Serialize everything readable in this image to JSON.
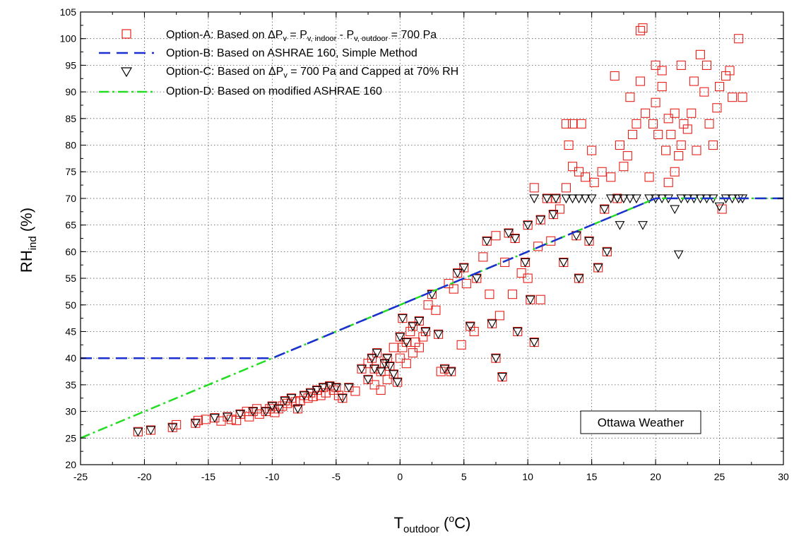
{
  "chart_data": {
    "type": "scatter",
    "title": "",
    "xlim": [
      -25,
      30
    ],
    "ylim": [
      20,
      105
    ],
    "x_ticks": [
      -25,
      -20,
      -15,
      -10,
      -5,
      0,
      5,
      10,
      15,
      20,
      25,
      30
    ],
    "y_ticks": [
      20,
      25,
      30,
      35,
      40,
      45,
      50,
      55,
      60,
      65,
      70,
      75,
      80,
      85,
      90,
      95,
      100,
      105
    ],
    "grid": true,
    "legend_position": "top-left",
    "annotation": "Ottawa Weather",
    "xlabel": {
      "main": "T",
      "sub": "outdoor",
      "paren_open": " (",
      "sup": "o",
      "unit": "C)"
    },
    "ylabel": {
      "main": "RH",
      "sub": "ind",
      "unit": " (%)"
    },
    "legend": [
      {
        "key": "A",
        "text_parts": {
          "t1": "Option-A: Based on ",
          "t2": "ΔP",
          "t3": "v",
          "t4": " = P",
          "t5": "v, indoor",
          "t6": " - P",
          "t7": "v, outdoor",
          "t8": " = 700 Pa"
        }
      },
      {
        "key": "B",
        "text_parts": {
          "t1": "Option-B: Based on ASHRAE 160, Simple Method"
        }
      },
      {
        "key": "C",
        "text_parts": {
          "t1": "Option-C: Based on ",
          "t2": "ΔP",
          "t3": "v",
          "t4": " = 700 Pa and Capped at 70% RH"
        }
      },
      {
        "key": "D",
        "text_parts": {
          "t1": "Option-D: Based on modified ASHRAE 160"
        }
      }
    ],
    "series": [
      {
        "name": "Option-A: Based on ΔPv = Pv, indoor - Pv, outdoor = 700 Pa",
        "marker": "square",
        "color": "#e8201a",
        "points": [
          [
            -20.5,
            26.2
          ],
          [
            -19.5,
            26.5
          ],
          [
            -17.8,
            27
          ],
          [
            -17.5,
            27.5
          ],
          [
            -16,
            27.8
          ],
          [
            -15.8,
            28.3
          ],
          [
            -15.2,
            28.5
          ],
          [
            -14.5,
            28.8
          ],
          [
            -14,
            28.2
          ],
          [
            -13.5,
            29
          ],
          [
            -13.2,
            28.5
          ],
          [
            -12.8,
            28.3
          ],
          [
            -12.5,
            29.5
          ],
          [
            -12,
            30
          ],
          [
            -11.8,
            29
          ],
          [
            -11.5,
            30
          ],
          [
            -11.2,
            30.5
          ],
          [
            -11,
            29.5
          ],
          [
            -10.5,
            30
          ],
          [
            -10.2,
            30.5
          ],
          [
            -10,
            31
          ],
          [
            -9.8,
            29.8
          ],
          [
            -9.5,
            30.5
          ],
          [
            -9.2,
            31
          ],
          [
            -9,
            32
          ],
          [
            -8.8,
            31.5
          ],
          [
            -8.5,
            32.5
          ],
          [
            -8.2,
            31.8
          ],
          [
            -8,
            30.5
          ],
          [
            -7.8,
            32
          ],
          [
            -7.5,
            33
          ],
          [
            -7.2,
            32.5
          ],
          [
            -7,
            33.5
          ],
          [
            -6.8,
            32.8
          ],
          [
            -6.5,
            34
          ],
          [
            -6.2,
            33
          ],
          [
            -6,
            34.5
          ],
          [
            -5.8,
            33.5
          ],
          [
            -5.5,
            34.8
          ],
          [
            -5.2,
            34
          ],
          [
            -5,
            34.5
          ],
          [
            -4.8,
            33
          ],
          [
            -4.5,
            32.5
          ],
          [
            -4,
            34.5
          ],
          [
            -3.5,
            33.8
          ],
          [
            -3,
            38
          ],
          [
            -2.5,
            36
          ],
          [
            -2.5,
            39
          ],
          [
            -2.2,
            40
          ],
          [
            -2,
            38
          ],
          [
            -2,
            35
          ],
          [
            -1.8,
            41
          ],
          [
            -1.5,
            37.5
          ],
          [
            -1.5,
            34
          ],
          [
            -1.2,
            39
          ],
          [
            -1,
            40
          ],
          [
            -1,
            36
          ],
          [
            -0.8,
            38.5
          ],
          [
            -0.5,
            37
          ],
          [
            -0.5,
            42
          ],
          [
            -0.2,
            35.5
          ],
          [
            0,
            44
          ],
          [
            0,
            40
          ],
          [
            0.2,
            42
          ],
          [
            0.2,
            47.5
          ],
          [
            0.5,
            43
          ],
          [
            0.5,
            39
          ],
          [
            0.8,
            45
          ],
          [
            1,
            46
          ],
          [
            1,
            41
          ],
          [
            1.2,
            43
          ],
          [
            1.5,
            47
          ],
          [
            1.5,
            42
          ],
          [
            1.8,
            44
          ],
          [
            2,
            45
          ],
          [
            2.2,
            50
          ],
          [
            2.5,
            52
          ],
          [
            2.8,
            49
          ],
          [
            3,
            44.5
          ],
          [
            3.2,
            37.5
          ],
          [
            3.5,
            38
          ],
          [
            3.8,
            54
          ],
          [
            4,
            37.5
          ],
          [
            4.2,
            53
          ],
          [
            4.5,
            56
          ],
          [
            4.8,
            42.5
          ],
          [
            5,
            57
          ],
          [
            5.2,
            54
          ],
          [
            5.5,
            46
          ],
          [
            5.8,
            45
          ],
          [
            6,
            55
          ],
          [
            6.5,
            59
          ],
          [
            6.8,
            62
          ],
          [
            7,
            52
          ],
          [
            7.2,
            46.5
          ],
          [
            7.5,
            63
          ],
          [
            7.5,
            40
          ],
          [
            7.8,
            48
          ],
          [
            8,
            36.5
          ],
          [
            8.2,
            58
          ],
          [
            8.5,
            63.5
          ],
          [
            8.8,
            52
          ],
          [
            9,
            62.5
          ],
          [
            9.2,
            45
          ],
          [
            9.5,
            56
          ],
          [
            9.8,
            58
          ],
          [
            10,
            65
          ],
          [
            10,
            55
          ],
          [
            10.2,
            51
          ],
          [
            10.5,
            43
          ],
          [
            10.5,
            72
          ],
          [
            10.8,
            61
          ],
          [
            11,
            66
          ],
          [
            11,
            51
          ],
          [
            11.5,
            70
          ],
          [
            11.8,
            62
          ],
          [
            12,
            67
          ],
          [
            12.2,
            70
          ],
          [
            12.5,
            68
          ],
          [
            12.8,
            58
          ],
          [
            13,
            84
          ],
          [
            13,
            72
          ],
          [
            13.2,
            80
          ],
          [
            13.5,
            84
          ],
          [
            13.5,
            76
          ],
          [
            13.8,
            63
          ],
          [
            14,
            75
          ],
          [
            14,
            55
          ],
          [
            14.2,
            84
          ],
          [
            14.5,
            74
          ],
          [
            14.8,
            62
          ],
          [
            15,
            79
          ],
          [
            15.2,
            73
          ],
          [
            15.5,
            57
          ],
          [
            15.8,
            75
          ],
          [
            16,
            68
          ],
          [
            16.2,
            60
          ],
          [
            16.5,
            74
          ],
          [
            16.8,
            93
          ],
          [
            17,
            70
          ],
          [
            17.2,
            80
          ],
          [
            17.5,
            76
          ],
          [
            17.8,
            78
          ],
          [
            18,
            89
          ],
          [
            18.2,
            82
          ],
          [
            18.5,
            84
          ],
          [
            18.8,
            92
          ],
          [
            18.8,
            101.5
          ],
          [
            19,
            102
          ],
          [
            19.2,
            86
          ],
          [
            19.5,
            74
          ],
          [
            19.8,
            84
          ],
          [
            20,
            95
          ],
          [
            20,
            88
          ],
          [
            20.2,
            82
          ],
          [
            20.5,
            94
          ],
          [
            20.5,
            91
          ],
          [
            20.8,
            79
          ],
          [
            21,
            85
          ],
          [
            21,
            73
          ],
          [
            21.2,
            82
          ],
          [
            21.5,
            86
          ],
          [
            21.5,
            75
          ],
          [
            21.8,
            78
          ],
          [
            22,
            95
          ],
          [
            22,
            80
          ],
          [
            22.2,
            84
          ],
          [
            22.5,
            83
          ],
          [
            22.8,
            86
          ],
          [
            23,
            92
          ],
          [
            23.2,
            79
          ],
          [
            23.5,
            97
          ],
          [
            23.8,
            90
          ],
          [
            24,
            95
          ],
          [
            24.2,
            84
          ],
          [
            24.5,
            80
          ],
          [
            24.8,
            87
          ],
          [
            25,
            91
          ],
          [
            25.2,
            68
          ],
          [
            25.5,
            93
          ],
          [
            25.8,
            94
          ],
          [
            26,
            89
          ],
          [
            26.5,
            100
          ],
          [
            26.8,
            89
          ]
        ]
      },
      {
        "name": "Option-B: Based on ASHRAE 160, Simple Method",
        "line": "dashed",
        "color": "#1c2fd0",
        "points": [
          [
            -25,
            40
          ],
          [
            -10,
            40
          ],
          [
            20,
            70
          ],
          [
            30,
            70
          ]
        ]
      },
      {
        "name": "Option-C: Based on ΔPv = 700 Pa and Capped at 70% RH",
        "marker": "triangle-down",
        "color": "#000000",
        "points": [
          [
            -20.5,
            26.2
          ],
          [
            -19.5,
            26.5
          ],
          [
            -17.8,
            27
          ],
          [
            -16,
            27.8
          ],
          [
            -14.5,
            28.8
          ],
          [
            -13.5,
            29
          ],
          [
            -12.5,
            29.5
          ],
          [
            -11.5,
            30
          ],
          [
            -10.5,
            30
          ],
          [
            -10,
            31
          ],
          [
            -9.5,
            30.5
          ],
          [
            -9,
            32
          ],
          [
            -8.5,
            32.5
          ],
          [
            -8,
            30.5
          ],
          [
            -7.5,
            33
          ],
          [
            -7,
            33.5
          ],
          [
            -6.5,
            34
          ],
          [
            -6,
            34.5
          ],
          [
            -5.5,
            34.8
          ],
          [
            -5,
            34.5
          ],
          [
            -4.5,
            32.5
          ],
          [
            -4,
            34.5
          ],
          [
            -3,
            38
          ],
          [
            -2.5,
            36
          ],
          [
            -2.2,
            40
          ],
          [
            -2,
            38
          ],
          [
            -1.8,
            41
          ],
          [
            -1.5,
            37.5
          ],
          [
            -1.2,
            39
          ],
          [
            -1,
            40
          ],
          [
            -0.8,
            38.5
          ],
          [
            -0.5,
            37
          ],
          [
            -0.2,
            35.5
          ],
          [
            0,
            44
          ],
          [
            0.2,
            47.5
          ],
          [
            0.5,
            43
          ],
          [
            1,
            46
          ],
          [
            1.5,
            47
          ],
          [
            2,
            45
          ],
          [
            2.5,
            52
          ],
          [
            3,
            44.5
          ],
          [
            3.5,
            38
          ],
          [
            4,
            37.5
          ],
          [
            4.5,
            56
          ],
          [
            5,
            57
          ],
          [
            5.5,
            46
          ],
          [
            6,
            55
          ],
          [
            6.8,
            62
          ],
          [
            7.2,
            46.5
          ],
          [
            7.5,
            40
          ],
          [
            8,
            36.5
          ],
          [
            8.5,
            63.5
          ],
          [
            9,
            62.5
          ],
          [
            9.2,
            45
          ],
          [
            9.8,
            58
          ],
          [
            10,
            65
          ],
          [
            10.2,
            51
          ],
          [
            10.5,
            43
          ],
          [
            10.5,
            70
          ],
          [
            11,
            66
          ],
          [
            11.5,
            70
          ],
          [
            12,
            67
          ],
          [
            12.2,
            70
          ],
          [
            12.8,
            58
          ],
          [
            13,
            70
          ],
          [
            13.5,
            70
          ],
          [
            13.8,
            63
          ],
          [
            14,
            70
          ],
          [
            14,
            55
          ],
          [
            14.5,
            70
          ],
          [
            14.8,
            62
          ],
          [
            15,
            70
          ],
          [
            15.5,
            57
          ],
          [
            16,
            68
          ],
          [
            16.2,
            60
          ],
          [
            16.5,
            70
          ],
          [
            17,
            70
          ],
          [
            17.2,
            65
          ],
          [
            17.5,
            70
          ],
          [
            18,
            70
          ],
          [
            18.5,
            70
          ],
          [
            19,
            65
          ],
          [
            19.5,
            70
          ],
          [
            20,
            70
          ],
          [
            20.5,
            70
          ],
          [
            21,
            70
          ],
          [
            21.5,
            68
          ],
          [
            21.8,
            59.5
          ],
          [
            22,
            70
          ],
          [
            22.5,
            70
          ],
          [
            23,
            70
          ],
          [
            23.5,
            70
          ],
          [
            24,
            70
          ],
          [
            24.5,
            70
          ],
          [
            25,
            68.5
          ],
          [
            25.5,
            70
          ],
          [
            26,
            70
          ],
          [
            26.5,
            70
          ],
          [
            26.8,
            70
          ]
        ]
      },
      {
        "name": "Option-D: Based on modified ASHRAE 160",
        "line": "dash-dot",
        "color": "#22dd22",
        "points": [
          [
            -25,
            25
          ],
          [
            20,
            70
          ],
          [
            30,
            70
          ]
        ]
      }
    ]
  }
}
